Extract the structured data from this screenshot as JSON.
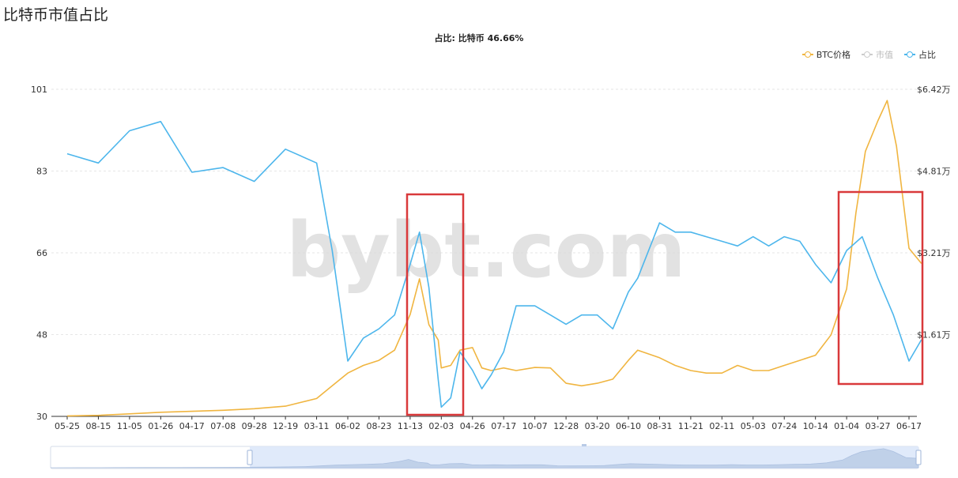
{
  "page": {
    "title": "比特币市值占比"
  },
  "watermark": "bybt.com",
  "chart_data": {
    "type": "line",
    "title": "占比: 比特币 46.66%",
    "title_label": "占比:",
    "title_series": "比特币",
    "title_value": "46.66%",
    "legend": [
      {
        "name": "BTC价格",
        "color": "#f0b540",
        "active": true
      },
      {
        "name": "市值",
        "color": "#cccccc",
        "active": false
      },
      {
        "name": "占比",
        "color": "#4db6ec",
        "active": true
      }
    ],
    "legend_position": "top-right",
    "x_tick_labels": [
      "05-25",
      "08-15",
      "11-05",
      "01-26",
      "04-17",
      "07-08",
      "09-28",
      "12-19",
      "03-11",
      "06-02",
      "08-23",
      "11-13",
      "02-03",
      "04-26",
      "07-17",
      "10-07",
      "12-28",
      "03-20",
      "06-10",
      "08-31",
      "11-21",
      "02-11",
      "05-03",
      "07-24",
      "10-14",
      "01-04",
      "03-27",
      "06-17"
    ],
    "y_left": {
      "ticks": [
        "101",
        "83",
        "66",
        "48",
        "30"
      ],
      "range": [
        30,
        101
      ]
    },
    "y_right": {
      "ticks": [
        "$6.42万",
        "$4.81万",
        "$3.21万",
        "$1.61万"
      ],
      "range_wan": [
        0,
        6.42
      ]
    },
    "grid": "horizontal dashed",
    "series": [
      {
        "name": "占比",
        "axis": "left",
        "color": "#4db6ec",
        "x_index": [
          0,
          1,
          2,
          3,
          4,
          5,
          6,
          7,
          8,
          8.5,
          9,
          9.5,
          10,
          10.5,
          11,
          11.3,
          11.6,
          11.9,
          12,
          12.3,
          12.6,
          13,
          13.3,
          13.6,
          14,
          14.4,
          15,
          15.5,
          16,
          16.5,
          17,
          17.5,
          18,
          18.3,
          19,
          19.5,
          20,
          20.5,
          21,
          21.5,
          22,
          22.5,
          23,
          23.5,
          24,
          24.5,
          25,
          25.5,
          26,
          26.5,
          27,
          27.4
        ],
        "values": [
          87,
          85,
          92,
          94,
          83,
          84,
          81,
          88,
          85,
          66,
          42,
          47,
          49,
          52,
          63,
          70,
          58,
          38,
          32,
          34,
          44,
          40,
          36,
          39,
          44,
          54,
          54,
          52,
          50,
          52,
          52,
          49,
          57,
          60,
          72,
          70,
          70,
          69,
          68,
          67,
          69,
          67,
          69,
          68,
          63,
          59,
          66,
          69,
          60,
          52,
          42,
          46.66
        ]
      },
      {
        "name": "BTC价格",
        "axis": "right",
        "unit": "万 USD",
        "color": "#f0b540",
        "x_index": [
          0,
          1,
          2,
          3,
          4,
          5,
          6,
          7,
          8,
          8.5,
          9,
          9.5,
          10,
          10.5,
          11,
          11.3,
          11.6,
          11.9,
          12,
          12.3,
          12.6,
          13,
          13.3,
          13.6,
          14,
          14.4,
          15,
          15.5,
          16,
          16.5,
          17,
          17.5,
          18,
          18.3,
          19,
          19.5,
          20,
          20.5,
          21,
          21.5,
          22,
          22.5,
          23,
          23.5,
          24,
          24.5,
          25,
          25.3,
          25.6,
          26,
          26.3,
          26.6,
          27,
          27.4
        ],
        "values": [
          0.01,
          0.02,
          0.05,
          0.08,
          0.1,
          0.12,
          0.15,
          0.2,
          0.35,
          0.6,
          0.85,
          1.0,
          1.1,
          1.3,
          2.0,
          2.7,
          1.8,
          1.5,
          0.95,
          1.0,
          1.3,
          1.35,
          0.95,
          0.9,
          0.95,
          0.9,
          0.96,
          0.95,
          0.65,
          0.6,
          0.65,
          0.73,
          1.1,
          1.3,
          1.15,
          1.0,
          0.9,
          0.85,
          0.85,
          1.0,
          0.9,
          0.9,
          1.0,
          1.1,
          1.2,
          1.6,
          2.5,
          4.0,
          5.2,
          5.8,
          6.2,
          5.3,
          3.3,
          3.0
        ]
      }
    ]
  },
  "zoom_slider": {
    "label": "data zoom"
  }
}
